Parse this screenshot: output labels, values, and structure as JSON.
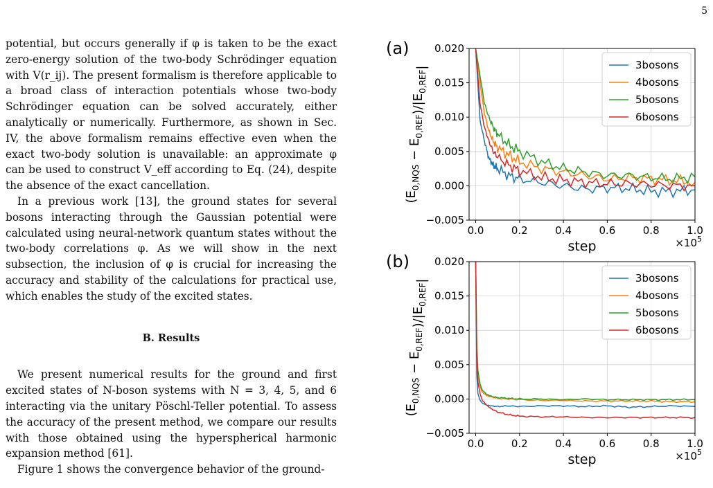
{
  "page_number": "5",
  "paragraph_1": "potential, but occurs generally if φ is taken to be the exact zero-energy solution of the two-body Schrödinger equation with V(r_ij). The present formalism is therefore applicable to a broad class of interaction potentials whose two-body Schrödinger equation can be solved accurately, either analytically or numerically. Furthermore, as shown in Sec. IV, the above formalism remains effective even when the exact two-body solution is unavailable: an approximate φ can be used to construct V_eff according to Eq. (24), despite the absence of the exact cancellation.",
  "paragraph_2": "In a previous work [13], the ground states for several bosons interacting through the Gaussian potential were calculated using neural-network quantum states without the two-body correlations φ. As we will show in the next subsection, the inclusion of φ is crucial for increasing the accuracy and stability of the calculations for practical use, which enables the study of the excited states.",
  "section_heading": "B.   Results",
  "paragraph_3": "We present numerical results for the ground and first excited states of N-boson systems with N = 3, 4, 5, and 6 interacting via the unitary Pöschl-Teller potential. To assess the accuracy of the present method, we compare our results with those obtained using the hyperspherical harmonic expansion method [61].",
  "paragraph_4": "Figure 1 shows the convergence behavior of the ground-",
  "chart_data": [
    {
      "type": "line",
      "panel_label": "(a)",
      "xlabel": "step",
      "ylabel": "(E0,NQS − E0,REF)/|E0,REF|",
      "x_multiplier": "×10^5",
      "xlim": [
        -0.03,
        1.0
      ],
      "ylim": [
        -0.005,
        0.02
      ],
      "xticks": [
        "0.0",
        "0.2",
        "0.4",
        "0.6",
        "0.8",
        "1.0"
      ],
      "yticks": [
        "−0.005",
        "0.000",
        "0.005",
        "0.010",
        "0.015",
        "0.020"
      ],
      "grid": true,
      "legend_position": "top-right",
      "x": [
        0.0,
        0.02,
        0.04,
        0.06,
        0.08,
        0.1,
        0.15,
        0.2,
        0.3,
        0.4,
        0.5,
        0.6,
        0.7,
        0.8,
        0.9,
        1.0
      ],
      "series": [
        {
          "name": "3bosons",
          "color": "#1f77b4",
          "values": [
            0.02,
            0.0095,
            0.0065,
            0.004,
            0.003,
            0.0025,
            0.0015,
            0.001,
            0.0005,
            0.0,
            -0.0005,
            -0.0003,
            -0.0004,
            -0.0008,
            -0.0008,
            -0.0006
          ]
        },
        {
          "name": "4bosons",
          "color": "#ff7f0e",
          "values": [
            0.02,
            0.015,
            0.0105,
            0.008,
            0.0065,
            0.0055,
            0.0045,
            0.0035,
            0.0025,
            0.002,
            0.0015,
            0.001,
            0.0012,
            0.001,
            0.0008,
            0.0005
          ]
        },
        {
          "name": "5bosons",
          "color": "#2ca02c",
          "values": [
            0.02,
            0.016,
            0.012,
            0.01,
            0.0085,
            0.0075,
            0.006,
            0.005,
            0.0035,
            0.0025,
            0.002,
            0.0015,
            0.0015,
            0.0012,
            0.001,
            0.0013
          ]
        },
        {
          "name": "6bosons",
          "color": "#d62728",
          "values": [
            0.02,
            0.012,
            0.0085,
            0.0065,
            0.005,
            0.0042,
            0.003,
            0.0022,
            0.0012,
            0.0008,
            0.0005,
            0.0003,
            0.0003,
            0.0002,
            0.0,
            0.0
          ]
        }
      ]
    },
    {
      "type": "line",
      "panel_label": "(b)",
      "xlabel": "step",
      "ylabel": "(E0,NQS − E0,REF)/|E0,REF|",
      "x_multiplier": "×10^5",
      "xlim": [
        -0.03,
        1.0
      ],
      "ylim": [
        -0.005,
        0.02
      ],
      "xticks": [
        "0.0",
        "0.2",
        "0.4",
        "0.6",
        "0.8",
        "1.0"
      ],
      "yticks": [
        "−0.005",
        "0.000",
        "0.005",
        "0.010",
        "0.015",
        "0.020"
      ],
      "grid": true,
      "legend_position": "top-right",
      "x": [
        0.0,
        0.005,
        0.01,
        0.02,
        0.03,
        0.05,
        0.07,
        0.1,
        0.15,
        0.2,
        0.3,
        0.4,
        0.5,
        0.6,
        0.7,
        0.8,
        0.9,
        1.0
      ],
      "series": [
        {
          "name": "3bosons",
          "color": "#1f77b4",
          "values": [
            0.02,
            0.0035,
            0.0008,
            -0.0002,
            -0.0006,
            -0.0009,
            -0.001,
            -0.0011,
            -0.001,
            -0.0011,
            -0.001,
            -0.001,
            -0.0011,
            -0.001,
            -0.0012,
            -0.0011,
            -0.001,
            -0.0011
          ]
        },
        {
          "name": "4bosons",
          "color": "#ff7f0e",
          "values": [
            0.02,
            0.007,
            0.0035,
            0.0018,
            0.001,
            0.0005,
            0.0003,
            0.0001,
            0.0,
            -0.0001,
            -0.0002,
            -0.0002,
            -0.0003,
            -0.0003,
            -0.0003,
            -0.0003,
            -0.0004,
            -0.0004
          ]
        },
        {
          "name": "5bosons",
          "color": "#2ca02c",
          "values": [
            0.02,
            0.008,
            0.0042,
            0.0022,
            0.0013,
            0.0007,
            0.0004,
            0.0002,
            0.0001,
            0.0,
            0.0,
            -0.0001,
            0.0,
            -0.0001,
            -0.0001,
            -0.0001,
            -0.0001,
            -0.0001
          ]
        },
        {
          "name": "6bosons",
          "color": "#d62728",
          "values": [
            0.02,
            0.006,
            0.0025,
            0.0008,
            -0.0002,
            -0.0009,
            -0.0014,
            -0.0019,
            -0.0023,
            -0.0025,
            -0.0026,
            -0.0026,
            -0.0027,
            -0.0027,
            -0.0027,
            -0.0027,
            -0.0027,
            -0.0027
          ]
        }
      ]
    }
  ]
}
